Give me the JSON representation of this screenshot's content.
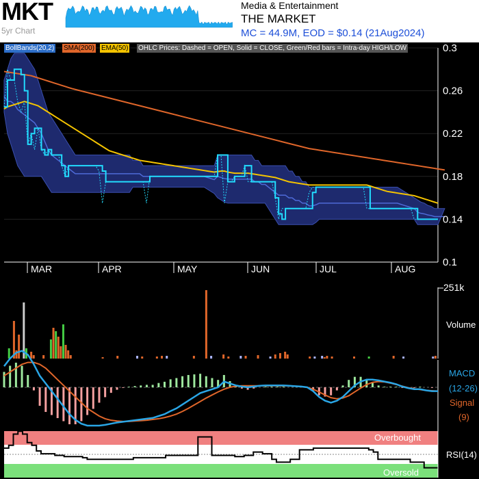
{
  "header": {
    "ticker": "MKT",
    "five_year_label": "5yr Chart",
    "sector": "Media & Entertainment",
    "company": "THE MARKET",
    "summary": "MC = 44.9M, EOD = $0.14 (21Aug2024)"
  },
  "legend": {
    "boll": "BollBands(20,2)",
    "sma": "SMA(200)",
    "ema": "EMA(50)",
    "ohlc": "OHLC Prices: Dashed = OPEN, Solid = CLOSE, Green/Red bars = Intra-day HIGH/LOW"
  },
  "colors": {
    "background": "#000000",
    "price": "#22ddff",
    "boll_fill": "#1e2a6e",
    "sma": "#e0662a",
    "ema": "#f5c400",
    "volume_up": "#44cc44",
    "volume_down": "#e0662a",
    "macd": "#2aa6e6",
    "signal": "#e0662a",
    "rsi_overbought": "#f08080",
    "rsi_oversold": "#7be07b"
  },
  "side_labels": {
    "volume_max": "251k",
    "volume": "Volume",
    "macd": "MACD",
    "macd_params": "(12-26)",
    "signal": "Signal",
    "signal_params": "(9)",
    "rsi": "RSI(14)",
    "overbought": "Overbought",
    "oversold": "Oversold"
  },
  "chart_data": {
    "type": "line",
    "y_ticks": [
      "0.3",
      "0.26",
      "0.22",
      "0.18",
      "0.14",
      "0.1"
    ],
    "ylim": [
      0.1,
      0.3
    ],
    "months": [
      "MAR",
      "APR",
      "MAY",
      "JUN",
      "JUL",
      "AUG"
    ],
    "close": [
      0.245,
      0.27,
      0.27,
      0.28,
      0.28,
      0.275,
      0.26,
      0.21,
      0.22,
      0.225,
      0.225,
      0.205,
      0.2,
      0.205,
      0.2,
      0.2,
      0.2,
      0.19,
      0.18,
      0.19,
      0.19,
      0.19,
      0.19,
      0.19,
      0.19,
      0.19,
      0.19,
      0.19,
      0.19,
      0.185,
      0.175,
      0.175,
      0.175,
      0.175,
      0.175,
      0.175,
      0.175,
      0.175,
      0.175,
      0.175,
      0.175,
      0.175,
      0.175,
      0.18,
      0.18,
      0.18,
      0.18,
      0.18,
      0.18,
      0.18,
      0.18,
      0.18,
      0.18,
      0.18,
      0.18,
      0.18,
      0.18,
      0.18,
      0.18,
      0.18,
      0.18,
      0.18,
      0.18,
      0.2,
      0.2,
      0.2,
      0.175,
      0.175,
      0.18,
      0.18,
      0.18,
      0.19,
      0.19,
      0.175,
      0.175,
      0.175,
      0.175,
      0.175,
      0.175,
      0.175,
      0.16,
      0.145,
      0.14,
      0.15,
      0.15,
      0.15,
      0.15,
      0.15,
      0.15,
      0.15,
      0.15,
      0.165,
      0.17,
      0.17,
      0.17,
      0.17,
      0.17,
      0.17,
      0.17,
      0.17,
      0.17,
      0.17,
      0.17,
      0.17,
      0.17,
      0.17,
      0.17,
      0.17,
      0.15,
      0.15,
      0.15,
      0.15,
      0.15,
      0.15,
      0.15,
      0.15,
      0.15,
      0.15,
      0.15,
      0.15,
      0.15,
      0.15,
      0.14,
      0.14,
      0.14,
      0.14,
      0.14,
      0.14,
      0.14
    ],
    "open": [
      0.245,
      0.28,
      0.27,
      0.27,
      0.25,
      0.24,
      0.25,
      0.21,
      0.22,
      0.205,
      0.225,
      0.205,
      0.2,
      0.205,
      0.2,
      0.2,
      0.2,
      0.19,
      0.18,
      0.19,
      0.19,
      0.19,
      0.19,
      0.19,
      0.19,
      0.19,
      0.19,
      0.19,
      0.185,
      0.155,
      0.175,
      0.175,
      0.175,
      0.175,
      0.175,
      0.175,
      0.175,
      0.175,
      0.175,
      0.175,
      0.175,
      0.175,
      0.155,
      0.18,
      0.18,
      0.18,
      0.18,
      0.18,
      0.18,
      0.18,
      0.18,
      0.18,
      0.18,
      0.18,
      0.18,
      0.18,
      0.18,
      0.18,
      0.18,
      0.18,
      0.18,
      0.18,
      0.18,
      0.2,
      0.2,
      0.155,
      0.175,
      0.175,
      0.18,
      0.18,
      0.18,
      0.19,
      0.175,
      0.175,
      0.175,
      0.175,
      0.175,
      0.175,
      0.175,
      0.175,
      0.16,
      0.14,
      0.15,
      0.15,
      0.15,
      0.15,
      0.15,
      0.15,
      0.15,
      0.15,
      0.165,
      0.17,
      0.17,
      0.17,
      0.17,
      0.17,
      0.17,
      0.17,
      0.17,
      0.17,
      0.17,
      0.17,
      0.17,
      0.17,
      0.17,
      0.17,
      0.17,
      0.15,
      0.15,
      0.15,
      0.15,
      0.15,
      0.15,
      0.15,
      0.15,
      0.15,
      0.15,
      0.15,
      0.15,
      0.15,
      0.15,
      0.14,
      0.14,
      0.14,
      0.14,
      0.14,
      0.14,
      0.14
    ],
    "boll_upper": [
      0.27,
      0.28,
      0.29,
      0.295,
      0.295,
      0.295,
      0.295,
      0.29,
      0.285,
      0.28,
      0.27,
      0.26,
      0.25,
      0.24,
      0.235,
      0.23,
      0.225,
      0.22,
      0.215,
      0.21,
      0.205,
      0.2,
      0.2,
      0.2,
      0.2,
      0.2,
      0.2,
      0.2,
      0.2,
      0.2,
      0.2,
      0.2,
      0.2,
      0.2,
      0.2,
      0.2,
      0.2,
      0.2,
      0.195,
      0.195,
      0.195,
      0.19,
      0.19,
      0.19,
      0.19,
      0.19,
      0.19,
      0.19,
      0.19,
      0.19,
      0.19,
      0.19,
      0.19,
      0.19,
      0.19,
      0.19,
      0.19,
      0.19,
      0.19,
      0.19,
      0.19,
      0.19,
      0.19,
      0.2,
      0.2,
      0.2,
      0.2,
      0.2,
      0.2,
      0.2,
      0.2,
      0.2,
      0.2,
      0.2,
      0.195,
      0.195,
      0.19,
      0.19,
      0.19,
      0.19,
      0.19,
      0.19,
      0.19,
      0.19,
      0.185,
      0.185,
      0.18,
      0.18,
      0.175,
      0.175,
      0.17,
      0.17,
      0.17,
      0.17,
      0.17,
      0.17,
      0.17,
      0.17,
      0.17,
      0.17,
      0.17,
      0.17,
      0.17,
      0.17,
      0.17,
      0.17,
      0.17,
      0.17,
      0.17,
      0.17,
      0.17,
      0.17,
      0.17,
      0.17,
      0.17,
      0.17,
      0.17,
      0.168,
      0.166,
      0.164,
      0.162,
      0.16,
      0.158,
      0.156,
      0.155,
      0.153,
      0.152,
      0.15,
      0.15,
      0.15,
      0.15
    ],
    "boll_lower": [
      0.24,
      0.22,
      0.21,
      0.2,
      0.19,
      0.185,
      0.18,
      0.18,
      0.18,
      0.18,
      0.18,
      0.18,
      0.175,
      0.17,
      0.165,
      0.165,
      0.165,
      0.165,
      0.165,
      0.165,
      0.165,
      0.165,
      0.165,
      0.165,
      0.165,
      0.165,
      0.165,
      0.165,
      0.165,
      0.165,
      0.165,
      0.165,
      0.165,
      0.165,
      0.165,
      0.165,
      0.165,
      0.165,
      0.17,
      0.17,
      0.17,
      0.17,
      0.17,
      0.17,
      0.17,
      0.17,
      0.17,
      0.17,
      0.17,
      0.17,
      0.17,
      0.17,
      0.17,
      0.17,
      0.17,
      0.17,
      0.17,
      0.17,
      0.17,
      0.17,
      0.168,
      0.166,
      0.164,
      0.16,
      0.158,
      0.156,
      0.155,
      0.155,
      0.155,
      0.155,
      0.155,
      0.155,
      0.155,
      0.155,
      0.155,
      0.155,
      0.155,
      0.155,
      0.15,
      0.145,
      0.14,
      0.135,
      0.135,
      0.135,
      0.135,
      0.135,
      0.135,
      0.135,
      0.135,
      0.135,
      0.135,
      0.135,
      0.137,
      0.14,
      0.14,
      0.14,
      0.14,
      0.14,
      0.14,
      0.14,
      0.14,
      0.14,
      0.14,
      0.14,
      0.14,
      0.14,
      0.14,
      0.14,
      0.14,
      0.14,
      0.14,
      0.14,
      0.14,
      0.14,
      0.14,
      0.14,
      0.14,
      0.14,
      0.14,
      0.14,
      0.14,
      0.14,
      0.135,
      0.135,
      0.135,
      0.135,
      0.135,
      0.135,
      0.135,
      0.135,
      0.135,
      0.135,
      0.135
    ],
    "sma200": [
      0.278,
      0.2775,
      0.277,
      0.2765,
      0.276,
      0.2755,
      0.275,
      0.2745,
      0.274,
      0.273,
      0.272,
      0.271,
      0.27,
      0.269,
      0.268,
      0.267,
      0.266,
      0.265,
      0.264,
      0.263,
      0.262,
      0.2612,
      0.2604,
      0.2596,
      0.2588,
      0.258,
      0.2572,
      0.2564,
      0.2556,
      0.2548,
      0.254,
      0.2532,
      0.2524,
      0.2516,
      0.2508,
      0.25,
      0.2492,
      0.2484,
      0.2476,
      0.2468,
      0.246,
      0.2452,
      0.2444,
      0.2436,
      0.2428,
      0.242,
      0.2412,
      0.2404,
      0.2396,
      0.2388,
      0.238,
      0.2372,
      0.2364,
      0.2356,
      0.2348,
      0.234,
      0.2332,
      0.2324,
      0.2316,
      0.2308,
      0.23,
      0.2292,
      0.2284,
      0.2276,
      0.2268,
      0.226,
      0.2252,
      0.2244,
      0.2236,
      0.2228,
      0.222,
      0.2212,
      0.2204,
      0.2196,
      0.2188,
      0.218,
      0.2172,
      0.2164,
      0.2156,
      0.2148,
      0.214,
      0.2132,
      0.2124,
      0.2116,
      0.2108,
      0.21,
      0.2092,
      0.2084,
      0.2076,
      0.2068,
      0.206,
      0.2055,
      0.205,
      0.2045,
      0.204,
      0.2035,
      0.203,
      0.2025,
      0.202,
      0.2015,
      0.201,
      0.2005,
      0.2,
      0.1995,
      0.199,
      0.1985,
      0.198,
      0.1975,
      0.197,
      0.1965,
      0.196,
      0.1955,
      0.195,
      0.1945,
      0.194,
      0.1935,
      0.193,
      0.1925,
      0.192,
      0.1915,
      0.191,
      0.1905,
      0.19,
      0.1895,
      0.189,
      0.1885,
      0.188,
      0.1875,
      0.187,
      0.1865,
      0.186
    ],
    "ema50": [
      0.243,
      0.245,
      0.246,
      0.247,
      0.248,
      0.249,
      0.25,
      0.249,
      0.248,
      0.247,
      0.246,
      0.244,
      0.242,
      0.24,
      0.238,
      0.236,
      0.234,
      0.232,
      0.23,
      0.228,
      0.226,
      0.224,
      0.222,
      0.22,
      0.218,
      0.216,
      0.214,
      0.212,
      0.21,
      0.208,
      0.206,
      0.204,
      0.203,
      0.202,
      0.201,
      0.2,
      0.199,
      0.198,
      0.197,
      0.196,
      0.195,
      0.1945,
      0.194,
      0.1935,
      0.193,
      0.1925,
      0.192,
      0.1915,
      0.191,
      0.1905,
      0.19,
      0.1895,
      0.189,
      0.1885,
      0.188,
      0.1875,
      0.187,
      0.1865,
      0.186,
      0.1855,
      0.185,
      0.1845,
      0.184,
      0.1845,
      0.185,
      0.185,
      0.184,
      0.1835,
      0.183,
      0.183,
      0.183,
      0.183,
      0.183,
      0.1825,
      0.182,
      0.1815,
      0.181,
      0.1805,
      0.18,
      0.1795,
      0.179,
      0.178,
      0.177,
      0.176,
      0.175,
      0.1745,
      0.174,
      0.1735,
      0.173,
      0.1725,
      0.172,
      0.172,
      0.172,
      0.172,
      0.172,
      0.172,
      0.172,
      0.172,
      0.172,
      0.172,
      0.172,
      0.172,
      0.172,
      0.172,
      0.172,
      0.172,
      0.172,
      0.172,
      0.171,
      0.17,
      0.169,
      0.168,
      0.167,
      0.166,
      0.1655,
      0.165,
      0.1645,
      0.164,
      0.1635,
      0.163,
      0.1625,
      0.162,
      0.161,
      0.16,
      0.159,
      0.158,
      0.157,
      0.156,
      0.155
    ],
    "volume": [
      0,
      0,
      0.15,
      0,
      0.55,
      0.12,
      0.35,
      0,
      0.82,
      0.15,
      0,
      0.1,
      0.05,
      0,
      0,
      0,
      0.05,
      0,
      0,
      0.28,
      0.45,
      0.4,
      0.32,
      0.18,
      0.5,
      0.2,
      0.12,
      0.05,
      0,
      0,
      0,
      0,
      0,
      0,
      0,
      0,
      0,
      0,
      0,
      0,
      0.02,
      0,
      0,
      0,
      0,
      0,
      0.04,
      0,
      0,
      0,
      0,
      0,
      0,
      0,
      0.04,
      0,
      0.03,
      0,
      0,
      0,
      0,
      0,
      0.03,
      0,
      0.04,
      0,
      0.04,
      0,
      0,
      0,
      0,
      0,
      0,
      0,
      0,
      0,
      0,
      0.04,
      0,
      0,
      0,
      0,
      1.0,
      0,
      0.04,
      0,
      0,
      0,
      0,
      0.06,
      0,
      0.03,
      0,
      0,
      0,
      0,
      0.04,
      0,
      0.04,
      0,
      0,
      0,
      0,
      0.05,
      0,
      0,
      0,
      0,
      0.03,
      0,
      0.06,
      0,
      0.08,
      0,
      0.1,
      0.06,
      0,
      0,
      0,
      0,
      0,
      0,
      0,
      0,
      0.03,
      0,
      0.03,
      0,
      0,
      0.04,
      0.02,
      0.04,
      0,
      0.03,
      0,
      0,
      0,
      0,
      0,
      0,
      0,
      0,
      0.03,
      0,
      0,
      0,
      0,
      0,
      0.03,
      0,
      0,
      0,
      0,
      0,
      0,
      0,
      0,
      0,
      0.04,
      0,
      0,
      0,
      0.03,
      0,
      0,
      0,
      0,
      0,
      0,
      0,
      0,
      0,
      0,
      0,
      0.03,
      0.04,
      0
    ],
    "volume_up": [
      2,
      9,
      19,
      21,
      24,
      32,
      83,
      100,
      125,
      127,
      148
    ],
    "macd": [
      0.55,
      0.75,
      0.9,
      0.95,
      0.85,
      0.6,
      0.3,
      0.1,
      -0.1,
      -0.3,
      -0.5,
      -0.7,
      -0.85,
      -0.95,
      -1.0,
      -1.0,
      -1.0,
      -0.98,
      -0.95,
      -0.92,
      -0.9,
      -0.88,
      -0.86,
      -0.84,
      -0.82,
      -0.8,
      -0.75,
      -0.7,
      -0.62,
      -0.55,
      -0.45,
      -0.35,
      -0.25,
      -0.15,
      -0.1,
      -0.05,
      0.0,
      0.15,
      0.1,
      0.05,
      0.02,
      0.0,
      0.02,
      0.04,
      0.05,
      0.05,
      0.05,
      0.05,
      0.04,
      0.03,
      0.02,
      0.0,
      -0.1,
      -0.25,
      -0.35,
      -0.4,
      -0.35,
      -0.25,
      -0.1,
      0.05,
      0.15,
      0.2,
      0.2,
      0.18,
      0.15,
      0.12,
      0.08,
      0.02,
      -0.02,
      -0.05,
      -0.05,
      -0.08,
      -0.1,
      -0.1
    ],
    "signal": [
      0.3,
      0.4,
      0.5,
      0.6,
      0.65,
      0.65,
      0.6,
      0.5,
      0.35,
      0.2,
      0.05,
      -0.1,
      -0.25,
      -0.4,
      -0.55,
      -0.65,
      -0.75,
      -0.82,
      -0.86,
      -0.88,
      -0.89,
      -0.89,
      -0.88,
      -0.87,
      -0.86,
      -0.84,
      -0.82,
      -0.79,
      -0.75,
      -0.7,
      -0.63,
      -0.55,
      -0.46,
      -0.37,
      -0.28,
      -0.2,
      -0.12,
      -0.05,
      0.0,
      0.03,
      0.04,
      0.04,
      0.04,
      0.04,
      0.04,
      0.04,
      0.04,
      0.04,
      0.04,
      0.03,
      0.02,
      0.0,
      -0.05,
      -0.12,
      -0.2,
      -0.27,
      -0.3,
      -0.28,
      -0.22,
      -0.12,
      -0.02,
      0.07,
      0.13,
      0.15,
      0.14,
      0.11,
      0.07,
      0.03,
      -0.01,
      -0.04,
      -0.06,
      -0.08,
      -0.09,
      -0.1
    ],
    "rsi": [
      55,
      60,
      80,
      85,
      80,
      65,
      60,
      50,
      45,
      45,
      45,
      42,
      42,
      40,
      40,
      40,
      40,
      38,
      35,
      35,
      35,
      35,
      35,
      35,
      35,
      35,
      35,
      35,
      38,
      38,
      38,
      38,
      38,
      38,
      38,
      42,
      42,
      42,
      42,
      42,
      42,
      42,
      75,
      75,
      75,
      42,
      42,
      42,
      42,
      42,
      40,
      40,
      42,
      42,
      48,
      48,
      45,
      45,
      35,
      30,
      30,
      30,
      35,
      35,
      52,
      52,
      52,
      55,
      55,
      55,
      55,
      55,
      55,
      55,
      55,
      55,
      55,
      55,
      55,
      52,
      48,
      35,
      35,
      35,
      35,
      35,
      35,
      35,
      30,
      30,
      30,
      20,
      20,
      20,
      20
    ]
  }
}
